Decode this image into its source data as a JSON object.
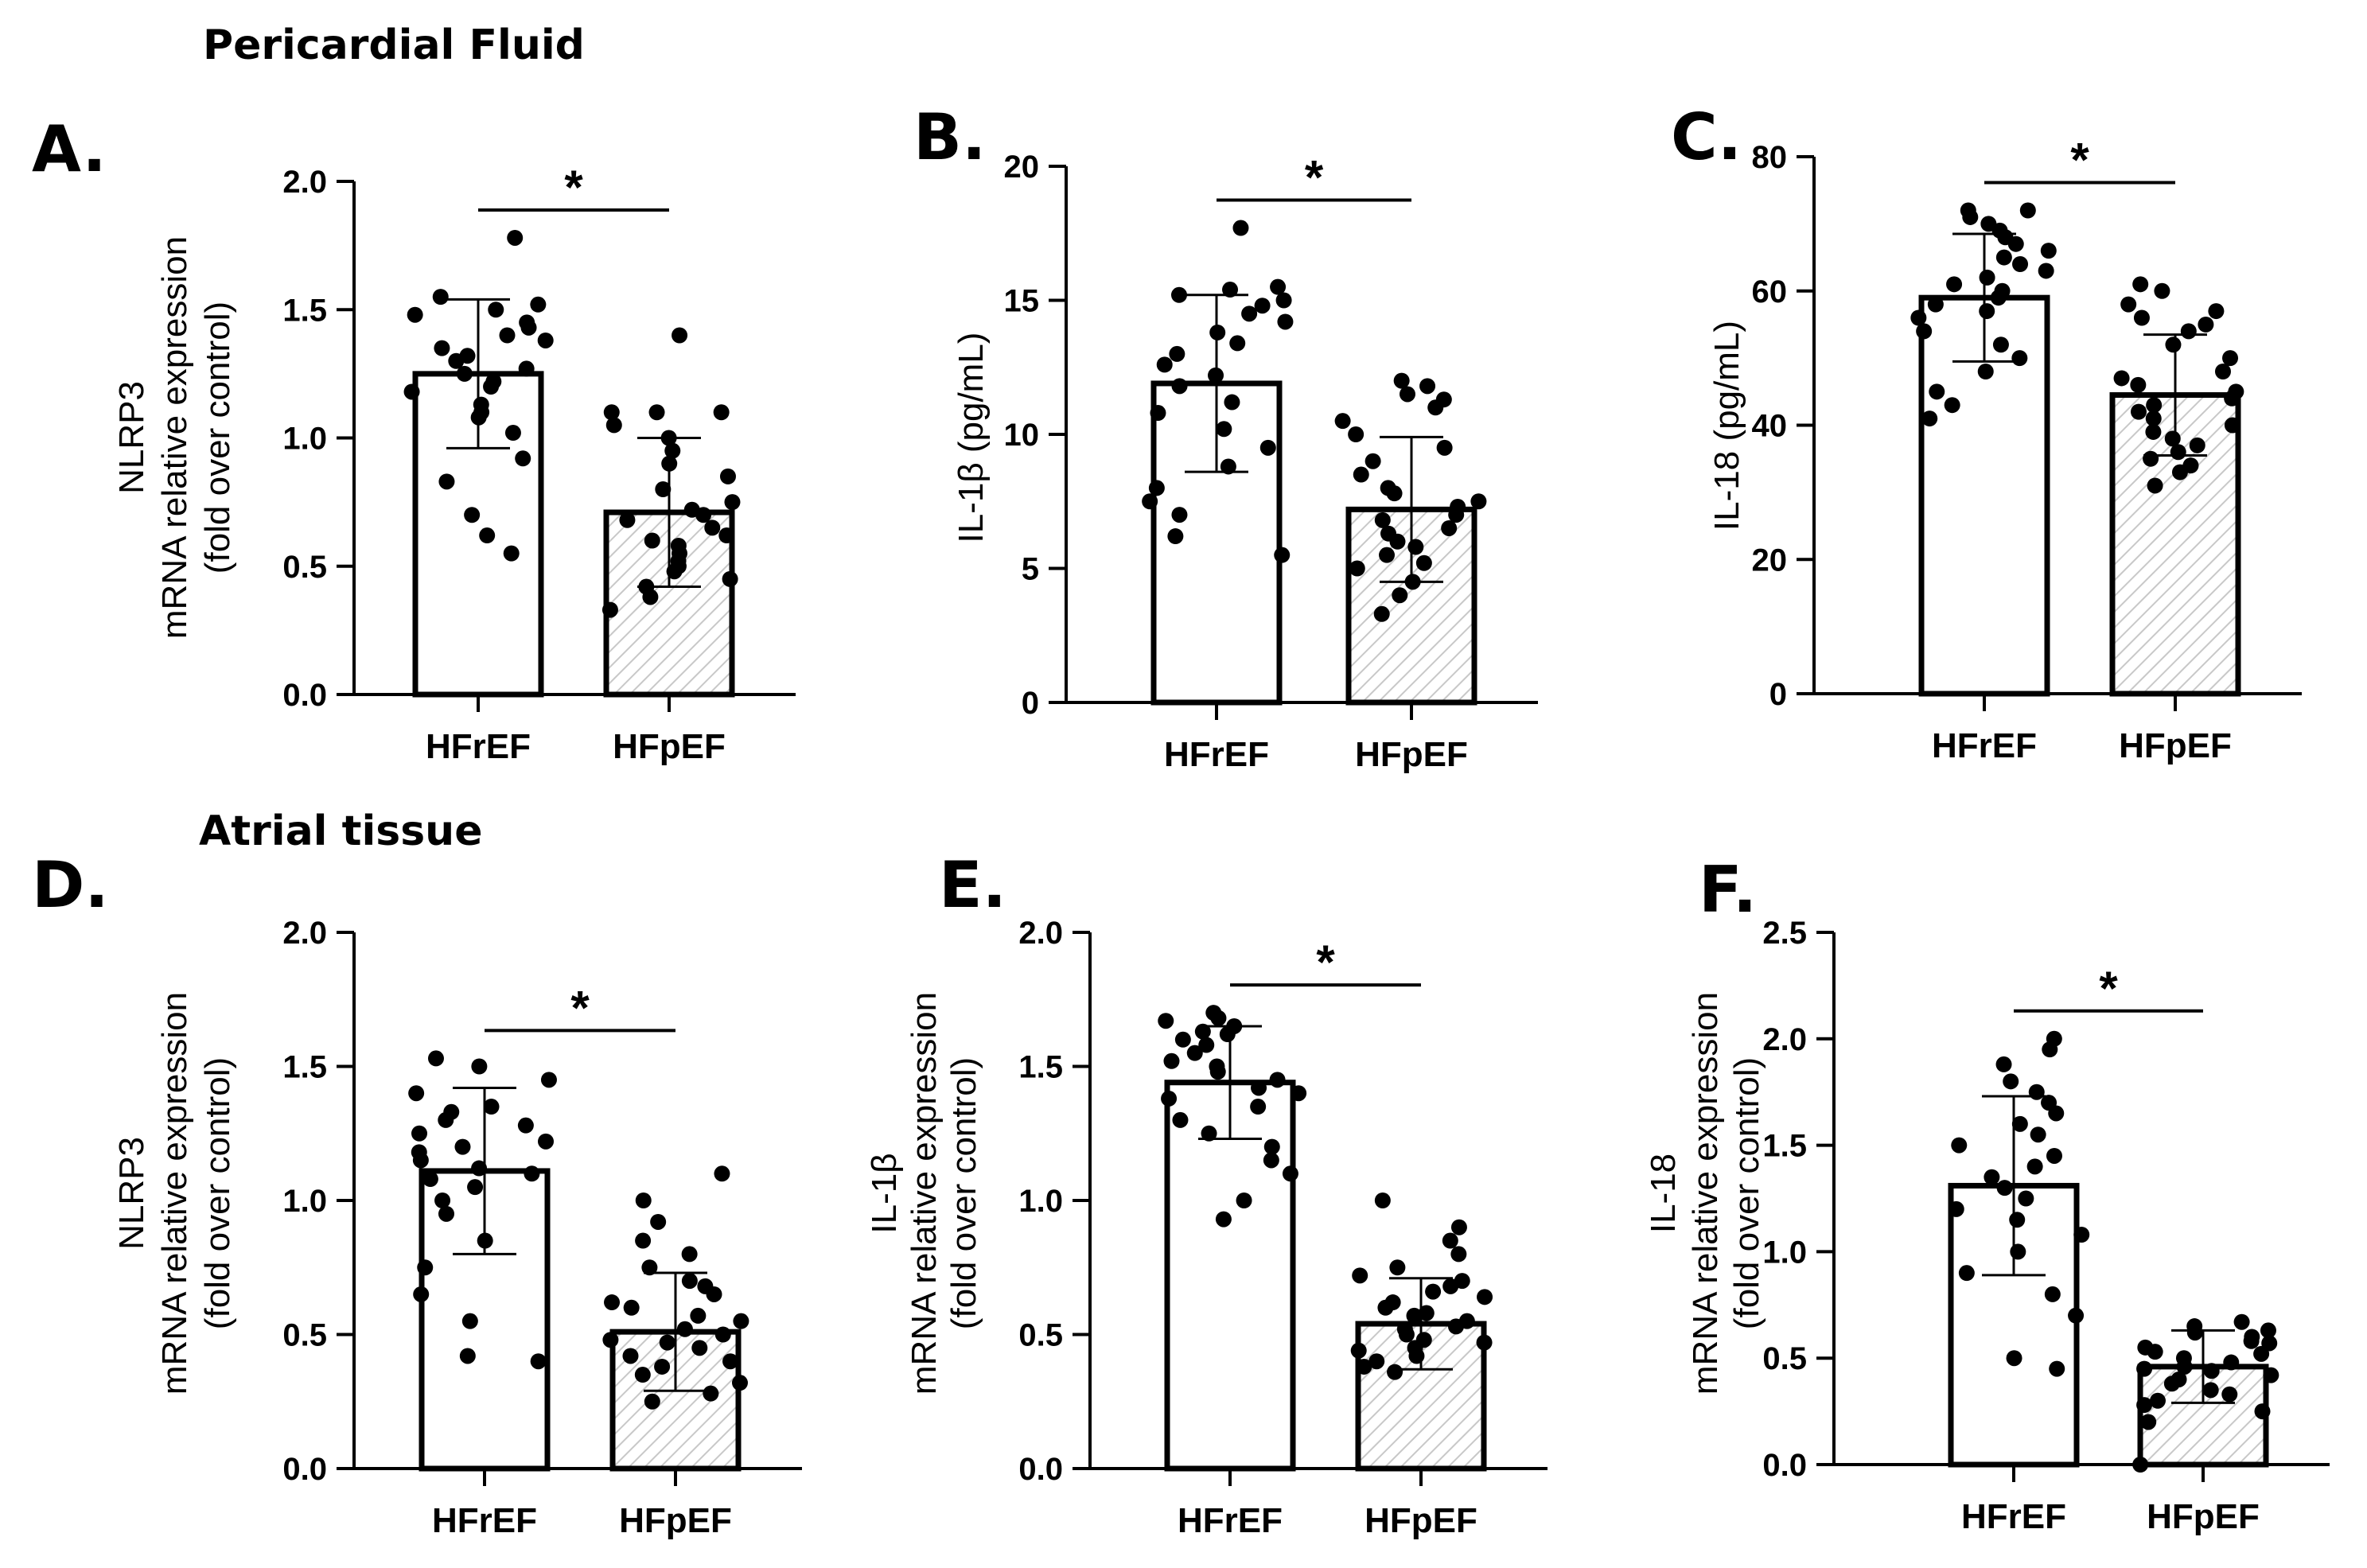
{
  "figure": {
    "section_titles": [
      "Pericardial Fluid",
      "Atrial tissue"
    ]
  },
  "colors": {
    "axis": "#000000",
    "dot": "#000000",
    "hfref_fill": "#ffffff",
    "hfpef_hatch": "#c8c8c8"
  },
  "chart_data": [
    {
      "panel": "A.",
      "type": "bar",
      "title": "",
      "ylabel_lines": [
        "NLRP3",
        "mRNA relative expression",
        "(fold over control)"
      ],
      "ylim": [
        0,
        2.0
      ],
      "yticks": [
        "0.0",
        "0.5",
        "1.0",
        "1.5",
        "2.0"
      ],
      "categories": [
        "HFrEF",
        "HFpEF"
      ],
      "means": [
        1.25,
        0.71
      ],
      "sd": [
        0.29,
        0.29
      ],
      "significance": "*",
      "points": [
        [
          0.55,
          0.62,
          0.7,
          0.83,
          0.92,
          1.02,
          1.08,
          1.1,
          1.13,
          1.18,
          1.2,
          1.22,
          1.25,
          1.27,
          1.3,
          1.32,
          1.35,
          1.38,
          1.4,
          1.43,
          1.45,
          1.48,
          1.5,
          1.52,
          1.55,
          1.78
        ],
        [
          0.33,
          0.38,
          0.42,
          0.45,
          0.48,
          0.5,
          0.52,
          0.55,
          0.58,
          0.6,
          0.62,
          0.65,
          0.68,
          0.7,
          0.72,
          0.75,
          0.8,
          0.85,
          0.9,
          0.95,
          1.0,
          1.05,
          1.1,
          1.1,
          1.1,
          1.4
        ]
      ]
    },
    {
      "panel": "B.",
      "type": "bar",
      "title": "",
      "ylabel_lines": [
        "IL-1β (pg/mL)"
      ],
      "ylim": [
        0,
        20
      ],
      "yticks": [
        "0",
        "5",
        "10",
        "15",
        "20"
      ],
      "categories": [
        "HFrEF",
        "HFpEF"
      ],
      "means": [
        11.9,
        7.2
      ],
      "sd": [
        3.3,
        2.7
      ],
      "significance": "*",
      "points": [
        [
          5.5,
          6.2,
          7.0,
          7.5,
          8.0,
          8.8,
          9.5,
          10.2,
          10.8,
          11.2,
          11.8,
          12.2,
          12.6,
          13.0,
          13.4,
          13.8,
          14.2,
          14.5,
          14.8,
          15.0,
          15.2,
          15.4,
          15.5,
          17.7
        ],
        [
          3.3,
          4.0,
          4.5,
          5.0,
          5.2,
          5.5,
          5.8,
          6.0,
          6.3,
          6.5,
          6.8,
          7.0,
          7.3,
          7.5,
          7.8,
          8.0,
          8.5,
          9.0,
          9.5,
          10.0,
          10.5,
          11.0,
          11.3,
          11.5,
          11.8,
          12.0
        ]
      ]
    },
    {
      "panel": "C.",
      "type": "bar",
      "title": "",
      "ylabel_lines": [
        "IL-18 (pg/mL)"
      ],
      "ylim": [
        0,
        80
      ],
      "yticks": [
        "0",
        "20",
        "40",
        "60",
        "80"
      ],
      "categories": [
        "HFrEF",
        "HFpEF"
      ],
      "means": [
        59,
        44.5
      ],
      "sd": [
        9.5,
        9.0
      ],
      "significance": "*",
      "points": [
        [
          41,
          43,
          45,
          48,
          50,
          52,
          54,
          56,
          57,
          58,
          59,
          60,
          61,
          62,
          63,
          64,
          65,
          66,
          67,
          68,
          69,
          70,
          71,
          72,
          72
        ],
        [
          31,
          33,
          34,
          35,
          36,
          37,
          38,
          39,
          40,
          41,
          42,
          43,
          44,
          45,
          46,
          47,
          48,
          50,
          52,
          54,
          55,
          56,
          57,
          58,
          60,
          61
        ]
      ]
    },
    {
      "panel": "D.",
      "type": "bar",
      "title": "",
      "ylabel_lines": [
        "NLRP3",
        "mRNA relative expression",
        "(fold over control)"
      ],
      "ylim": [
        0,
        2.0
      ],
      "yticks": [
        "0.0",
        "0.5",
        "1.0",
        "1.5",
        "2.0"
      ],
      "categories": [
        "HFrEF",
        "HFpEF"
      ],
      "means": [
        1.11,
        0.51
      ],
      "sd": [
        0.31,
        0.22
      ],
      "significance": "*",
      "points": [
        [
          0.4,
          0.42,
          0.55,
          0.65,
          0.75,
          0.85,
          0.95,
          1.0,
          1.05,
          1.08,
          1.1,
          1.12,
          1.15,
          1.18,
          1.2,
          1.22,
          1.25,
          1.28,
          1.3,
          1.33,
          1.35,
          1.4,
          1.45,
          1.5,
          1.53
        ],
        [
          0.25,
          0.28,
          0.32,
          0.35,
          0.38,
          0.4,
          0.42,
          0.45,
          0.47,
          0.48,
          0.5,
          0.52,
          0.55,
          0.57,
          0.6,
          0.62,
          0.65,
          0.68,
          0.7,
          0.75,
          0.8,
          0.85,
          0.92,
          1.0,
          1.1
        ]
      ]
    },
    {
      "panel": "E.",
      "type": "bar",
      "title": "",
      "ylabel_lines": [
        "IL-1β",
        "mRNA relative expression",
        "(fold over control)"
      ],
      "ylim": [
        0,
        2.0
      ],
      "yticks": [
        "0.0",
        "0.5",
        "1.0",
        "1.5",
        "2.0"
      ],
      "categories": [
        "HFrEF",
        "HFpEF"
      ],
      "means": [
        1.44,
        0.54
      ],
      "sd": [
        0.21,
        0.17
      ],
      "significance": "*",
      "points": [
        [
          0.93,
          1.0,
          1.1,
          1.15,
          1.2,
          1.25,
          1.3,
          1.35,
          1.38,
          1.4,
          1.42,
          1.45,
          1.48,
          1.5,
          1.52,
          1.55,
          1.58,
          1.6,
          1.62,
          1.63,
          1.65,
          1.67,
          1.68,
          1.7
        ],
        [
          0.36,
          0.38,
          0.4,
          0.42,
          0.44,
          0.45,
          0.47,
          0.48,
          0.5,
          0.52,
          0.53,
          0.55,
          0.57,
          0.58,
          0.6,
          0.62,
          0.64,
          0.66,
          0.68,
          0.7,
          0.72,
          0.75,
          0.8,
          0.85,
          0.9,
          1.0
        ]
      ]
    },
    {
      "panel": "F.",
      "type": "bar",
      "title": "",
      "ylabel_lines": [
        "IL-18",
        "mRNA relative expression",
        "(fold over control)"
      ],
      "ylim": [
        0,
        2.5
      ],
      "yticks": [
        "0.0",
        "0.5",
        "1.0",
        "1.5",
        "2.0",
        "2.5"
      ],
      "categories": [
        "HFrEF",
        "HFpEF"
      ],
      "means": [
        1.31,
        0.46
      ],
      "sd": [
        0.42,
        0.17
      ],
      "significance": "*",
      "points": [
        [
          0.45,
          0.5,
          0.7,
          0.8,
          0.9,
          1.0,
          1.08,
          1.15,
          1.2,
          1.25,
          1.3,
          1.35,
          1.4,
          1.45,
          1.5,
          1.55,
          1.6,
          1.65,
          1.7,
          1.75,
          1.8,
          1.88,
          1.95,
          2.0
        ],
        [
          0.0,
          0.2,
          0.25,
          0.28,
          0.3,
          0.33,
          0.35,
          0.38,
          0.4,
          0.42,
          0.44,
          0.45,
          0.46,
          0.48,
          0.5,
          0.52,
          0.53,
          0.55,
          0.57,
          0.58,
          0.6,
          0.62,
          0.63,
          0.65,
          0.67
        ]
      ]
    }
  ]
}
